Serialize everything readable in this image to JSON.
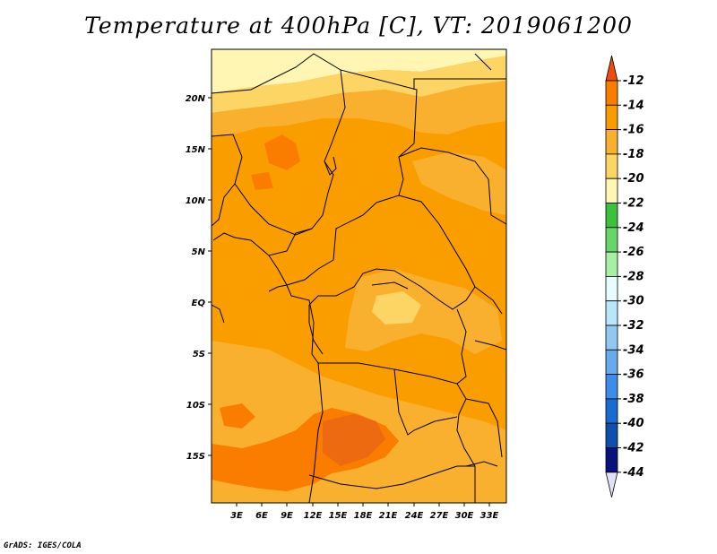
{
  "title": "Temperature at 400hPa [C], VT: 2019061200",
  "credit": "GrADS: IGES/COLA",
  "lat_labels": [
    "20N",
    "15N",
    "10N",
    "5N",
    "EQ",
    "5S",
    "10S",
    "15S"
  ],
  "lon_labels": [
    "3E",
    "6E",
    "9E",
    "12E",
    "15E",
    "18E",
    "21E",
    "24E",
    "27E",
    "30E",
    "33E"
  ],
  "colorbar": {
    "labels": [
      "-12",
      "-14",
      "-16",
      "-18",
      "-20",
      "-22",
      "-24",
      "-26",
      "-28",
      "-30",
      "-32",
      "-34",
      "-36",
      "-38",
      "-40",
      "-42",
      "-44"
    ],
    "colors": [
      "#ee4d10",
      "#fa7d00",
      "#f99c00",
      "#fab02f",
      "#fdd565",
      "#fef6b2",
      "#3bc13b",
      "#66d66a",
      "#a7efa5",
      "#e7fcfe",
      "#b8e6fb",
      "#90c8f2",
      "#69aaef",
      "#3d8ce9",
      "#1a6bd1",
      "#0f4fae",
      "#07127d",
      "#e1e1f6"
    ]
  },
  "map_colors": {
    "base": "#fa9e00",
    "warm1": "#fab02f",
    "warm2": "#fdd565",
    "warm3": "#fef6b2",
    "hot1": "#fa7d00",
    "hot2": "#ee6a10",
    "border": "#000000"
  }
}
